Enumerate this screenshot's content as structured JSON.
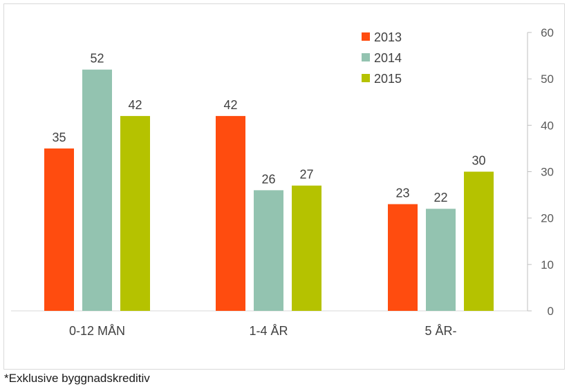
{
  "chart_data": {
    "type": "bar",
    "categories": [
      "0-12 MÅN",
      "1-4 ÅR",
      "5 ÅR-"
    ],
    "series": [
      {
        "name": "2013",
        "values": [
          35,
          42,
          23
        ],
        "color": "#ff4c0f"
      },
      {
        "name": "2014",
        "values": [
          52,
          26,
          22
        ],
        "color": "#93c3b0"
      },
      {
        "name": "2015",
        "values": [
          42,
          27,
          30
        ],
        "color": "#b5c200"
      }
    ],
    "ylim": [
      0,
      60
    ],
    "yticks": [
      "0",
      "10",
      "20",
      "30",
      "40",
      "50",
      "60"
    ],
    "y_axis_side": "right",
    "legend_position": "top-right",
    "grid": false,
    "title": "",
    "xlabel": "",
    "ylabel": ""
  },
  "footnote": "*Exklusive byggnadskreditiv"
}
